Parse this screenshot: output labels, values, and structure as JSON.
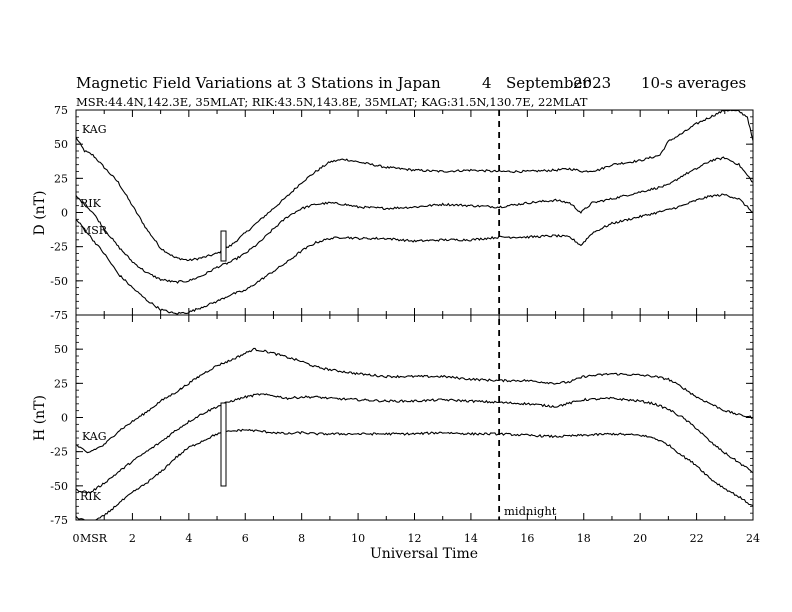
{
  "header": {
    "title": "Magnetic Field Variations at 3 Stations in Japan",
    "day": "4",
    "month": "September",
    "year": "2023",
    "averaging": "10-s averages",
    "stations_line": "MSR:44.4N,142.3E, 35MLAT;  RIK:43.5N,143.8E, 35MLAT;  KAG:31.5N,130.7E, 22MLAT"
  },
  "annotations": {
    "midnight": "midnight"
  },
  "chart_data": [
    {
      "type": "line",
      "panel": "D",
      "ylabel": "D (nT)",
      "xlabel": "",
      "xlim": [
        0,
        24
      ],
      "ylim": [
        -75,
        75
      ],
      "yticks": [
        75,
        50,
        25,
        0,
        -25,
        -50,
        -75
      ],
      "ytick_labels": [
        "75",
        "50",
        "25",
        "0",
        "-25",
        "-50",
        "-75"
      ],
      "series": [
        {
          "name": "KAG",
          "x": [
            0,
            0.3,
            0.6,
            1,
            1.5,
            2,
            2.5,
            3,
            3.5,
            4,
            4.5,
            5,
            5.5,
            6,
            6.5,
            7,
            7.5,
            8,
            8.5,
            9,
            9.5,
            10,
            11,
            12,
            13,
            14,
            15,
            16,
            17,
            17.5,
            18,
            18.5,
            19,
            20,
            20.7,
            21,
            21.5,
            22,
            22.5,
            23,
            23.5,
            23.8,
            24
          ],
          "y": [
            55,
            45,
            42,
            33,
            22,
            5,
            -12,
            -26,
            -33,
            -35,
            -33,
            -30,
            -24,
            -15,
            -6,
            3,
            12,
            22,
            30,
            37,
            39,
            37,
            33,
            31,
            30,
            31,
            30,
            30,
            31,
            32,
            30,
            31,
            35,
            38,
            42,
            52,
            58,
            65,
            70,
            75,
            74,
            70,
            52
          ]
        },
        {
          "name": "RIK",
          "x": [
            0,
            0.3,
            0.6,
            1,
            1.5,
            2,
            2.5,
            3,
            3.5,
            4,
            4.5,
            5,
            5.5,
            6,
            6.5,
            7,
            7.5,
            8,
            8.5,
            9,
            9.5,
            10,
            11,
            12,
            13,
            14,
            15,
            16,
            17,
            17.5,
            17.9,
            18.3,
            19,
            20,
            21,
            21.5,
            22,
            22.5,
            23,
            23.5,
            24
          ],
          "y": [
            12,
            6,
            0,
            -12,
            -25,
            -36,
            -44,
            -49,
            -51,
            -50,
            -46,
            -40,
            -36,
            -30,
            -22,
            -12,
            -3,
            3,
            6,
            7,
            6,
            4,
            3,
            4,
            6,
            5,
            4,
            7,
            9,
            7,
            0,
            7,
            10,
            15,
            20,
            27,
            32,
            38,
            40,
            35,
            22
          ]
        },
        {
          "name": "MSR",
          "x": [
            0,
            0.3,
            0.6,
            1,
            1.5,
            2,
            2.5,
            3,
            3.5,
            4,
            4.5,
            5,
            5.5,
            6,
            6.5,
            7,
            7.5,
            8,
            8.5,
            9,
            9.5,
            10,
            11,
            12,
            13,
            14,
            15,
            16,
            17,
            17.5,
            17.9,
            18.3,
            19,
            20,
            21,
            21.5,
            22,
            22.5,
            23,
            23.5,
            24
          ],
          "y": [
            -5,
            -12,
            -20,
            -30,
            -45,
            -55,
            -64,
            -71,
            -74,
            -73,
            -69,
            -65,
            -60,
            -57,
            -50,
            -43,
            -36,
            -28,
            -22,
            -19,
            -18,
            -19,
            -19,
            -21,
            -20,
            -20,
            -18,
            -18,
            -17,
            -18,
            -24,
            -15,
            -8,
            -3,
            2,
            5,
            9,
            12,
            13,
            10,
            0
          ]
        }
      ]
    },
    {
      "type": "line",
      "panel": "H",
      "ylabel": "H (nT)",
      "xlabel": "Universal Time",
      "xlim": [
        0,
        24
      ],
      "ylim": [
        -75,
        75
      ],
      "xticks": [
        0,
        2,
        4,
        6,
        8,
        10,
        12,
        14,
        16,
        18,
        20,
        22,
        24
      ],
      "xtick_labels": [
        "0",
        "2",
        "4",
        "6",
        "8",
        "10",
        "12",
        "14",
        "16",
        "18",
        "20",
        "22",
        "24"
      ],
      "yticks": [
        50,
        25,
        0,
        -25,
        -50,
        -75
      ],
      "ytick_labels": [
        "50",
        "25",
        "0",
        "-25",
        "-50",
        "-75"
      ],
      "midnight_ut": 15,
      "series": [
        {
          "name": "KAG",
          "x": [
            0,
            0.4,
            1,
            1.5,
            2,
            2.5,
            3,
            3.5,
            4,
            4.5,
            5,
            5.5,
            6,
            6.3,
            6.6,
            7,
            7.5,
            8,
            8.5,
            9,
            10,
            11,
            12,
            13,
            14,
            15,
            16,
            17,
            17.5,
            18,
            19,
            20,
            20.5,
            21,
            21.5,
            22,
            22.5,
            23,
            23.5,
            24
          ],
          "y": [
            -20,
            -26,
            -20,
            -10,
            -3,
            4,
            12,
            18,
            25,
            32,
            38,
            42,
            47,
            50,
            49,
            47,
            44,
            41,
            37,
            35,
            32,
            30,
            30,
            30,
            28,
            27,
            27,
            25,
            26,
            30,
            32,
            31,
            30,
            28,
            22,
            15,
            10,
            5,
            2,
            0
          ]
        },
        {
          "name": "RIK",
          "x": [
            0,
            0.5,
            1,
            1.5,
            2,
            2.5,
            3,
            3.5,
            4,
            4.5,
            5,
            5.5,
            6,
            6.5,
            7,
            7.5,
            8,
            8.5,
            9,
            10,
            11,
            12,
            13,
            14,
            15,
            16,
            17,
            18,
            19,
            20,
            20.5,
            21,
            21.5,
            22,
            22.5,
            23,
            23.5,
            24
          ],
          "y": [
            -53,
            -55,
            -48,
            -40,
            -32,
            -25,
            -18,
            -10,
            -3,
            3,
            8,
            12,
            15,
            17,
            16,
            14,
            15,
            15,
            14,
            13,
            12,
            12,
            13,
            12,
            11,
            10,
            8,
            13,
            14,
            12,
            10,
            6,
            0,
            -8,
            -18,
            -26,
            -33,
            -40
          ]
        },
        {
          "name": "MSR",
          "x": [
            0,
            0.5,
            1,
            1.5,
            2,
            2.5,
            3,
            3.5,
            4,
            4.5,
            5,
            5.5,
            6,
            6.5,
            7,
            7.5,
            8,
            8.5,
            9,
            10,
            11,
            12,
            13,
            14,
            15,
            16,
            17,
            18,
            19,
            20,
            20.5,
            21,
            21.5,
            22,
            22.5,
            23,
            23.5,
            24
          ],
          "y": [
            -73,
            -77,
            -72,
            -63,
            -55,
            -48,
            -40,
            -30,
            -22,
            -17,
            -12,
            -10,
            -9,
            -10,
            -11,
            -12,
            -11,
            -12,
            -12,
            -12,
            -12,
            -12,
            -11,
            -12,
            -12,
            -13,
            -14,
            -13,
            -12,
            -13,
            -15,
            -20,
            -28,
            -35,
            -45,
            -52,
            -58,
            -65
          ]
        }
      ]
    }
  ]
}
